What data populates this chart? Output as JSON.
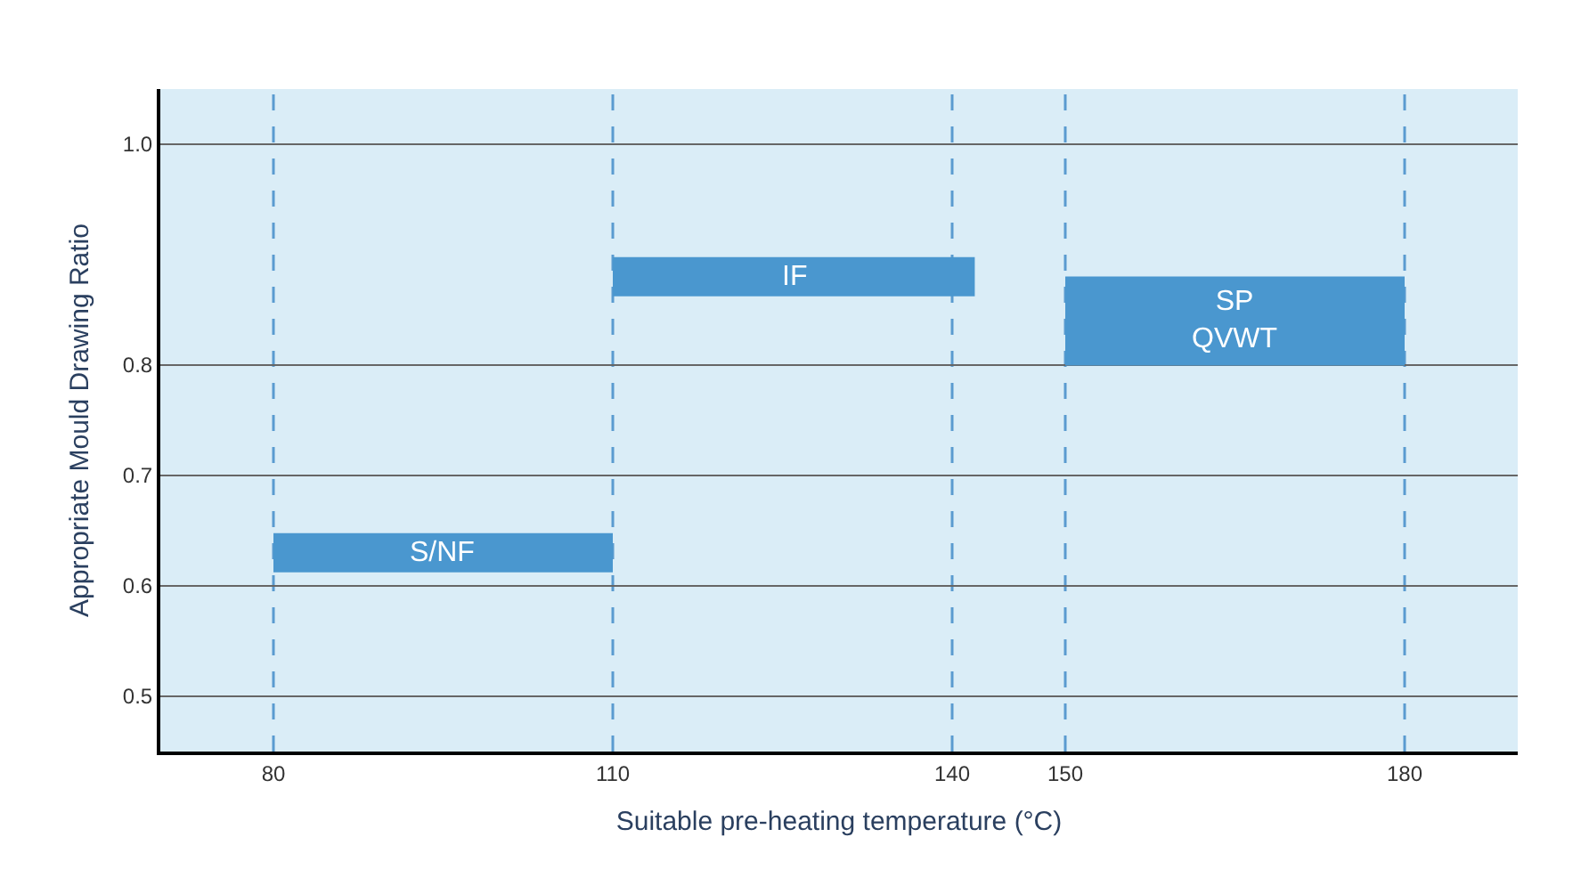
{
  "chart_data": {
    "type": "line",
    "xlabel": "Suitable pre-heating temperature (°C)",
    "ylabel": "Appropriate Mould Drawing Ratio",
    "xlim": [
      70,
      190
    ],
    "xticks": [
      80,
      110,
      140,
      150,
      180
    ],
    "ylim": [
      0.45,
      1.05
    ],
    "yticks": [
      0.5,
      0.6,
      0.7,
      0.8,
      {
        "value": 1.0,
        "label": "1.0"
      }
    ],
    "grid": "y",
    "legend": false,
    "ref_lines": [
      {
        "axis": "x",
        "value": 80,
        "label": null,
        "color": "#5a9bd0",
        "line_style": "dashed"
      },
      {
        "axis": "x",
        "value": 110,
        "label": null,
        "color": "#5a9bd0",
        "line_style": "dashed"
      },
      {
        "axis": "x",
        "value": 140,
        "label": null,
        "color": "#5a9bd0",
        "line_style": "dashed"
      },
      {
        "axis": "x",
        "value": 150,
        "label": null,
        "color": "#5a9bd0",
        "line_style": "dashed"
      },
      {
        "axis": "x",
        "value": 180,
        "label": null,
        "color": "#5a9bd0",
        "line_style": "dashed"
      }
    ],
    "series": [
      {
        "name": "S/NF",
        "color": "#4a97cf",
        "x": [
          80,
          110
        ],
        "values": [
          0.63,
          0.63
        ]
      },
      {
        "name": "IF",
        "color": "#4a97cf",
        "x": [
          110,
          142
        ],
        "values": [
          0.88,
          0.88
        ]
      },
      {
        "name": "SP\nQVWT",
        "color": "#4a97cf",
        "x": [
          150,
          180
        ],
        "values": [
          0.84,
          0.84
        ]
      }
    ]
  }
}
